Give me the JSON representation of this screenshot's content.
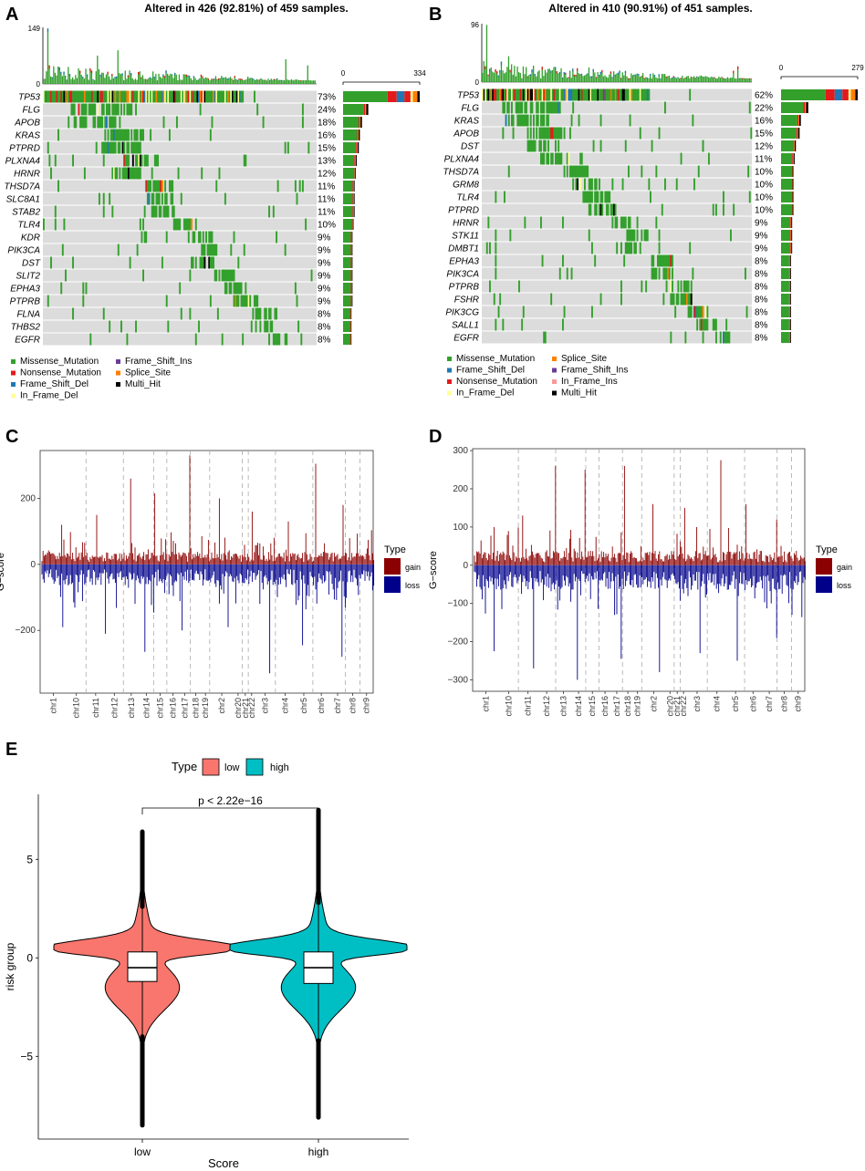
{
  "colors": {
    "missense": "#33a02c",
    "nonsense": "#e31a1c",
    "frame_shift_del": "#1f78b4",
    "frame_shift_ins": "#6a3d9a",
    "splice": "#ff7f00",
    "multi": "#000000",
    "in_frame_del": "#ffff99",
    "in_frame_ins": "#fb9a99",
    "gain": "#8b0000",
    "loss": "#00008b",
    "low": "#f8766d",
    "high": "#00bfc4",
    "track": "#dcdcdc"
  },
  "chart_data": [
    {
      "panel": "A",
      "type": "oncoplot",
      "title": "Altered in 426 (92.81%) of 459 samples.",
      "top_axis_ticks": [
        "149",
        "0"
      ],
      "top_max": 149,
      "side_axis_ticks": [
        "0",
        "334"
      ],
      "side_max": 334,
      "genes": [
        "TP53",
        "FLG",
        "APOB",
        "KRAS",
        "PTPRD",
        "PLXNA4",
        "HRNR",
        "THSD7A",
        "SLC8A1",
        "STAB2",
        "TLR4",
        "KDR",
        "PIK3CA",
        "DST",
        "SLIT2",
        "EPHA3",
        "PTPRB",
        "FLNA",
        "THBS2",
        "EGFR"
      ],
      "percents": [
        "73%",
        "24%",
        "18%",
        "16%",
        "15%",
        "13%",
        "12%",
        "11%",
        "11%",
        "11%",
        "10%",
        "9%",
        "9%",
        "9%",
        "9%",
        "9%",
        "9%",
        "8%",
        "8%",
        "8%"
      ],
      "percent_values": [
        73,
        24,
        18,
        16,
        15,
        13,
        12,
        11,
        11,
        11,
        10,
        9,
        9,
        9,
        9,
        9,
        9,
        8,
        8,
        8
      ],
      "legend": [
        {
          "label": "Missense_Mutation",
          "color_key": "missense"
        },
        {
          "label": "Nonsense_Mutation",
          "color_key": "nonsense"
        },
        {
          "label": "Frame_Shift_Del",
          "color_key": "frame_shift_del"
        },
        {
          "label": "In_Frame_Del",
          "color_key": "in_frame_del"
        },
        {
          "label": "Frame_Shift_Ins",
          "color_key": "frame_shift_ins"
        },
        {
          "label": "Splice_Site",
          "color_key": "splice"
        },
        {
          "label": "Multi_Hit",
          "color_key": "multi"
        }
      ]
    },
    {
      "panel": "B",
      "type": "oncoplot",
      "title": "Altered in 410 (90.91%) of 451 samples.",
      "top_axis_ticks": [
        "96",
        "0"
      ],
      "top_max": 96,
      "side_axis_ticks": [
        "0",
        "279"
      ],
      "side_max": 279,
      "genes": [
        "TP53",
        "FLG",
        "KRAS",
        "APOB",
        "DST",
        "PLXNA4",
        "THSD7A",
        "GRM8",
        "TLR4",
        "PTPRD",
        "HRNR",
        "STK11",
        "DMBT1",
        "EPHA3",
        "PIK3CA",
        "PTPRB",
        "FSHR",
        "PIK3CG",
        "SALL1",
        "EGFR"
      ],
      "percents": [
        "62%",
        "22%",
        "16%",
        "15%",
        "12%",
        "11%",
        "10%",
        "10%",
        "10%",
        "10%",
        "9%",
        "9%",
        "9%",
        "8%",
        "8%",
        "8%",
        "8%",
        "8%",
        "8%",
        "8%"
      ],
      "percent_values": [
        62,
        22,
        16,
        15,
        12,
        11,
        10,
        10,
        10,
        10,
        9,
        9,
        9,
        8,
        8,
        8,
        8,
        8,
        8,
        8
      ],
      "legend": [
        {
          "label": "Missense_Mutation",
          "color_key": "missense"
        },
        {
          "label": "Frame_Shift_Del",
          "color_key": "frame_shift_del"
        },
        {
          "label": "Nonsense_Mutation",
          "color_key": "nonsense"
        },
        {
          "label": "In_Frame_Del",
          "color_key": "in_frame_del"
        },
        {
          "label": "Splice_Site",
          "color_key": "splice"
        },
        {
          "label": "Frame_Shift_Ins",
          "color_key": "frame_shift_ins"
        },
        {
          "label": "In_Frame_Ins",
          "color_key": "in_frame_ins"
        },
        {
          "label": "Multi_Hit",
          "color_key": "multi"
        }
      ]
    },
    {
      "panel": "C",
      "type": "bar",
      "ylabel": "G−score",
      "yticks": [
        200,
        0,
        -200
      ],
      "ytick_labels": [
        "200",
        "0",
        "−200"
      ],
      "ylim": [
        -390,
        345
      ],
      "chromosomes": [
        "chr1",
        "chr10",
        "chr11",
        "chr12",
        "chr13",
        "chr14",
        "chr15",
        "chr16",
        "chr17",
        "chr18",
        "chr19",
        "chr2",
        "chr20",
        "chr21",
        "chr22",
        "chr3",
        "chr4",
        "chr5",
        "chr6",
        "chr7",
        "chr8",
        "chr9"
      ],
      "peaks_gain": [
        120,
        150,
        260,
        215,
        330,
        200,
        160,
        130,
        305,
        180
      ],
      "peaks_loss": [
        -190,
        -210,
        -265,
        -200,
        -190,
        -330,
        -245,
        -280
      ],
      "legend_title": "Type",
      "legend": [
        "gain",
        "loss"
      ]
    },
    {
      "panel": "D",
      "type": "bar",
      "ylabel": "G−score",
      "yticks": [
        300,
        200,
        100,
        0,
        -100,
        -200,
        -300
      ],
      "ytick_labels": [
        "300",
        "200",
        "100",
        "0",
        "−100",
        "−200",
        "−300"
      ],
      "ylim": [
        -330,
        305
      ],
      "chromosomes": [
        "chr1",
        "chr10",
        "chr11",
        "chr12",
        "chr13",
        "chr14",
        "chr15",
        "chr16",
        "chr17",
        "chr18",
        "chr19",
        "chr2",
        "chr20",
        "chr21",
        "chr22",
        "chr3",
        "chr4",
        "chr5",
        "chr6",
        "chr7",
        "chr8",
        "chr9"
      ],
      "peaks_gain": [
        100,
        130,
        260,
        250,
        260,
        160,
        150,
        275,
        160,
        120
      ],
      "peaks_loss": [
        -225,
        -270,
        -300,
        -245,
        -280,
        -230,
        -250,
        -190
      ],
      "legend_title": "Type",
      "legend": [
        "gain",
        "loss"
      ]
    },
    {
      "panel": "E",
      "type": "violin",
      "legend_title": "Type",
      "legend": [
        "low",
        "high"
      ],
      "categories": [
        "low",
        "high"
      ],
      "xlabel": "Score",
      "ylabel": "risk group",
      "yticks": [
        5,
        0,
        -5
      ],
      "ytick_labels": [
        "5",
        "0",
        "−5"
      ],
      "ylim": [
        -9.2,
        8.3
      ],
      "pvalue": "p < 2.22e−16",
      "box": [
        {
          "q1": -1.2,
          "median": -0.5,
          "q3": 0.3,
          "whisker_low": -4.0,
          "whisker_high": 2.6,
          "min": -8.5,
          "max": 6.4
        },
        {
          "q1": -1.3,
          "median": -0.5,
          "q3": 0.3,
          "whisker_low": -4.2,
          "whisker_high": 2.8,
          "min": -8.1,
          "max": 7.5
        }
      ]
    }
  ]
}
